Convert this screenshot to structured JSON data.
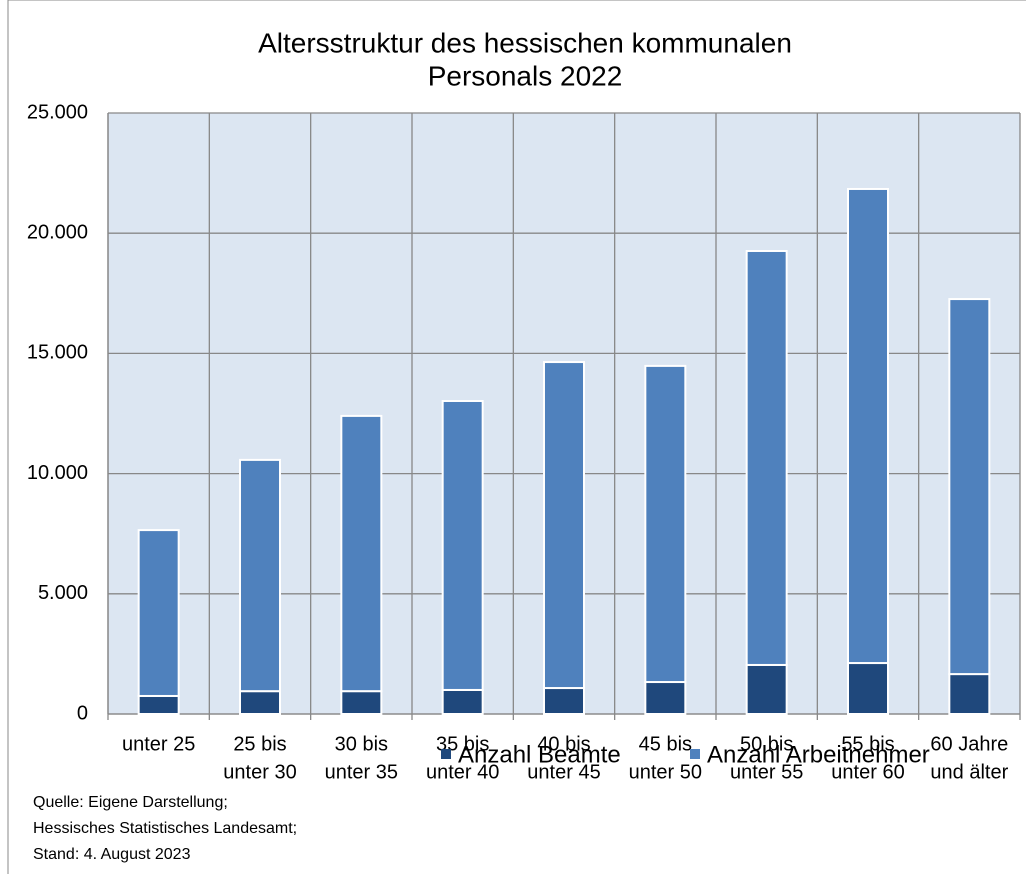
{
  "chart_data": {
    "type": "stacked_bar",
    "title": [
      "Altersstruktur des hessischen kommunalen",
      "Personals 2022"
    ],
    "categories": [
      [
        "unter 25"
      ],
      [
        "25 bis",
        "unter 30"
      ],
      [
        "30 bis",
        "unter 35"
      ],
      [
        "35 bis",
        "unter 40"
      ],
      [
        "40 bis",
        "unter 45"
      ],
      [
        "45 bis",
        "unter 50"
      ],
      [
        "50 bis",
        "unter 55"
      ],
      [
        "55 bis",
        "unter 60"
      ],
      [
        "60 Jahre",
        "und älter"
      ]
    ],
    "series": [
      {
        "name": "Anzahl Beamte",
        "color": "#1f487c",
        "values": [
          750,
          950,
          950,
          1000,
          1080,
          1330,
          2040,
          2120,
          1660
        ]
      },
      {
        "name": "Anzahl Arbeitnehmer",
        "color": "#4f81bd",
        "values": [
          6900,
          9620,
          11450,
          12020,
          13560,
          13150,
          17220,
          19720,
          15600
        ]
      }
    ],
    "ylim": [
      0,
      25000
    ],
    "yticks": [
      0,
      {
        "value": 5000,
        "label": "5.000"
      },
      {
        "value": 10000,
        "label": "10.000"
      },
      {
        "value": 15000,
        "label": "15.000"
      },
      {
        "value": 20000,
        "label": "20.000"
      },
      {
        "value": 25000,
        "label": "25.000"
      }
    ],
    "grid": true,
    "legend": "bottom",
    "source": [
      "Quelle: Eigene Darstellung;",
      "Hessisches Statistisches Landesamt;",
      "Stand: 4. August 2023"
    ]
  }
}
